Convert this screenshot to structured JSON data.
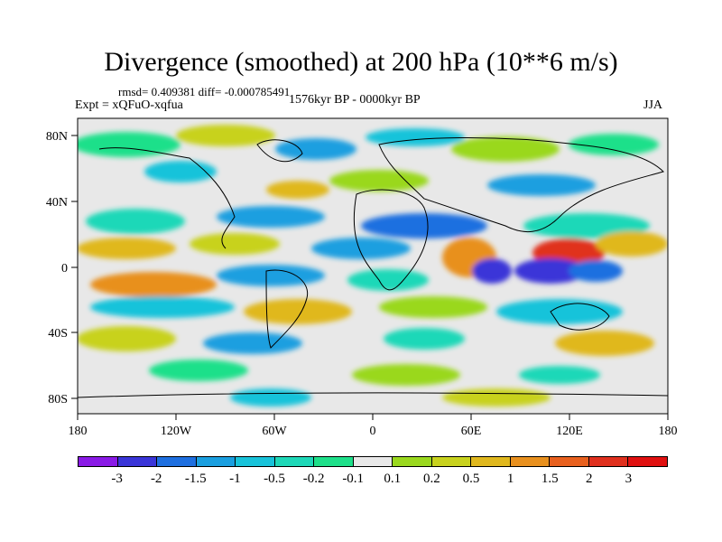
{
  "title": "Divergence (smoothed) at 200 hPa (10**6 m/s)",
  "stats": "rmsd= 0.409381 diff= -0.000785491",
  "experiment": "Expt = xQFuO-xqfua",
  "period": "1576kyr BP - 0000kyr BP",
  "season": "JJA",
  "axes": {
    "lon_ticks": [
      "180",
      "120W",
      "60W",
      "0",
      "60E",
      "120E",
      "180"
    ],
    "lat_ticks": [
      "80N",
      "40N",
      "0",
      "40S",
      "80S"
    ]
  },
  "colorbar": {
    "labels": [
      "-3",
      "-2",
      "-1.5",
      "-1",
      "-0.5",
      "-0.2",
      "-0.1",
      "0.1",
      "0.2",
      "0.5",
      "1",
      "1.5",
      "2",
      "3"
    ],
    "colors": [
      "#8a1ae6",
      "#3a35d8",
      "#1e6fe0",
      "#1a9fe0",
      "#18c3da",
      "#1ed8b8",
      "#1ee08a",
      "#e8e8e8",
      "#9ad81e",
      "#c8d21e",
      "#e0b81e",
      "#e8901e",
      "#e8601e",
      "#e0301e",
      "#e01010"
    ]
  }
}
